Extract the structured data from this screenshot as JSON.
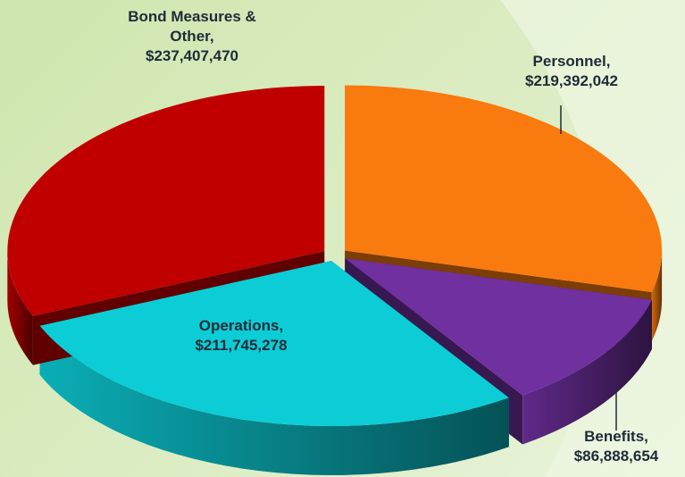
{
  "chart_data": {
    "type": "pie",
    "categories": [
      "Personnel",
      "Benefits",
      "Operations",
      "Bond Measures & Other"
    ],
    "values": [
      219392042,
      86888654,
      211745278,
      237407470
    ],
    "value_labels": [
      "$219,392,042",
      "$86,888,654",
      "$211,745,278",
      "$237,407,470"
    ],
    "colors": [
      "#f97a0e",
      "#7030a0",
      "#0ccdd6",
      "#c00000"
    ]
  }
}
